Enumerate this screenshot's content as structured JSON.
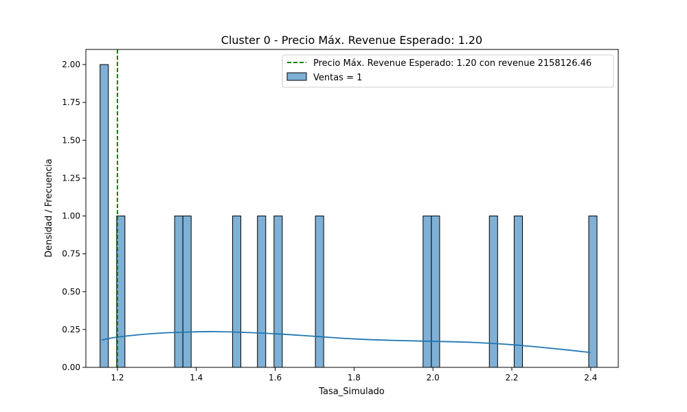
{
  "chart_data": {
    "type": "bar",
    "title": "Cluster 0 - Precio Máx. Revenue Esperado: 1.20",
    "xlabel": "Tasa_Simulado",
    "ylabel": "Densidad / Frecuencia",
    "xlim": [
      1.12,
      2.47
    ],
    "ylim": [
      0,
      2.1
    ],
    "xticks": [
      1.2,
      1.4,
      1.6,
      1.8,
      2.0,
      2.2,
      2.4
    ],
    "xtick_labels": [
      "1.2",
      "1.4",
      "1.6",
      "1.8",
      "2.0",
      "2.2",
      "2.4"
    ],
    "yticks": [
      0,
      0.25,
      0.5,
      0.75,
      1.0,
      1.25,
      1.5,
      1.75,
      2.0
    ],
    "ytick_labels": [
      "0.00",
      "0.25",
      "0.50",
      "0.75",
      "1.00",
      "1.25",
      "1.50",
      "1.75",
      "2.00"
    ],
    "grid": false,
    "legend_position": "top-right",
    "histogram": {
      "name": "Ventas = 1",
      "color": "#7fb0d5",
      "edge_color": "#000000",
      "bin_width": 0.021,
      "bins": [
        {
          "x0": 1.156,
          "count": 2
        },
        {
          "x0": 1.198,
          "count": 1
        },
        {
          "x0": 1.345,
          "count": 1
        },
        {
          "x0": 1.366,
          "count": 1
        },
        {
          "x0": 1.492,
          "count": 1
        },
        {
          "x0": 1.555,
          "count": 1
        },
        {
          "x0": 1.597,
          "count": 1
        },
        {
          "x0": 1.702,
          "count": 1
        },
        {
          "x0": 1.975,
          "count": 1
        },
        {
          "x0": 1.996,
          "count": 1
        },
        {
          "x0": 2.143,
          "count": 1
        },
        {
          "x0": 2.206,
          "count": 1
        },
        {
          "x0": 2.395,
          "count": 1
        }
      ]
    },
    "kde": {
      "color": "#1f77b4",
      "x": [
        1.16,
        1.2,
        1.3,
        1.4,
        1.45,
        1.5,
        1.6,
        1.7,
        1.8,
        1.9,
        2.0,
        2.1,
        2.2,
        2.3,
        2.4
      ],
      "y": [
        0.18,
        0.2,
        0.225,
        0.235,
        0.236,
        0.233,
        0.222,
        0.205,
        0.188,
        0.178,
        0.172,
        0.165,
        0.15,
        0.126,
        0.098
      ]
    },
    "reference_line": {
      "x": 1.2,
      "color": "#008000",
      "style": "dashed",
      "name": "Precio Máx. Revenue Esperado: 1.20 con revenue 2158126.46"
    },
    "legend": [
      {
        "label": "Precio Máx. Revenue Esperado: 1.20 con revenue 2158126.46",
        "kind": "line"
      },
      {
        "label": "Ventas = 1",
        "kind": "patch"
      }
    ]
  }
}
